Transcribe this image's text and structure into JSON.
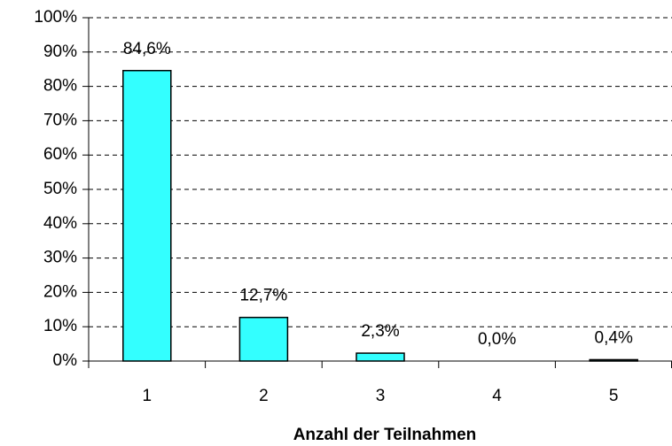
{
  "chart_data": {
    "type": "bar",
    "x_label": "Anzahl der Teilnahmen",
    "categories": [
      "1",
      "2",
      "3",
      "4",
      "5"
    ],
    "values": [
      84.6,
      12.7,
      2.3,
      0.0,
      0.4
    ],
    "value_labels": [
      "84,6%",
      "12,7%",
      "2,3%",
      "0,0%",
      "0,4%"
    ],
    "color": "#33ffff",
    "ylim": [
      0,
      100
    ],
    "yticks": [
      {
        "value": 0,
        "label": "0%"
      },
      {
        "value": 10,
        "label": "10%"
      },
      {
        "value": 20,
        "label": "20%"
      },
      {
        "value": 30,
        "label": "30%"
      },
      {
        "value": 40,
        "label": "40%"
      },
      {
        "value": 50,
        "label": "50%"
      },
      {
        "value": 60,
        "label": "60%"
      },
      {
        "value": 70,
        "label": "70%"
      },
      {
        "value": 80,
        "label": "80%"
      },
      {
        "value": 90,
        "label": "90%"
      },
      {
        "value": 100,
        "label": "100%"
      }
    ],
    "grid": true
  }
}
